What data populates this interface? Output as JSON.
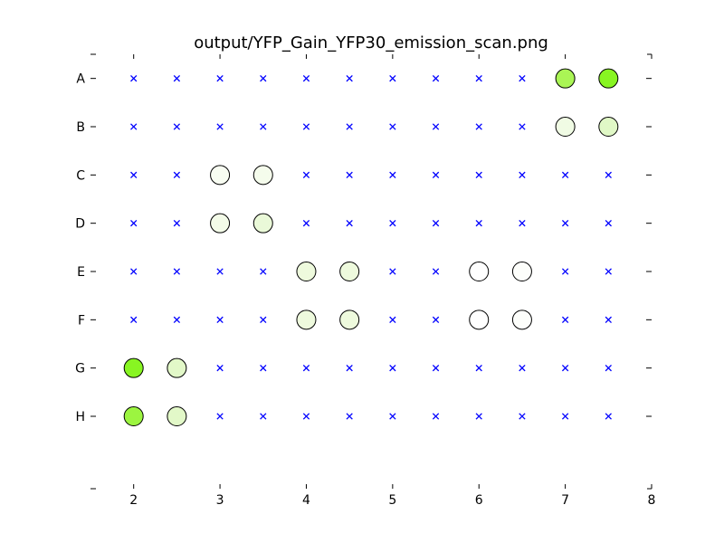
{
  "chart_data": {
    "type": "scatter",
    "title": "output/YFP_Gain_YFP30_emission_scan.png",
    "xlabel": "",
    "ylabel": "",
    "xlim": [
      1.5,
      8
    ],
    "ylim": [
      0.5,
      9.5
    ],
    "grid": false,
    "x_ticks": [
      "2",
      "3",
      "4",
      "5",
      "6",
      "7",
      "8"
    ],
    "x_tick_values": [
      2,
      3,
      4,
      5,
      6,
      7,
      8
    ],
    "rows": [
      "A",
      "B",
      "C",
      "D",
      "E",
      "F",
      "G",
      "H"
    ],
    "columns": [
      2,
      2.5,
      3,
      3.5,
      4,
      4.5,
      5,
      5.5,
      6,
      6.5,
      7,
      7.5
    ],
    "marker_color": "#0000ff",
    "circles": [
      {
        "row": "A",
        "x": 7.0,
        "color": "#aaf555"
      },
      {
        "row": "A",
        "x": 7.5,
        "color": "#88f522"
      },
      {
        "row": "B",
        "x": 7.0,
        "color": "#f0fbe4"
      },
      {
        "row": "B",
        "x": 7.5,
        "color": "#e0f8c6"
      },
      {
        "row": "C",
        "x": 3.0,
        "color": "#f8fdf2"
      },
      {
        "row": "C",
        "x": 3.5,
        "color": "#f5fcec"
      },
      {
        "row": "D",
        "x": 3.0,
        "color": "#f3fbe8"
      },
      {
        "row": "D",
        "x": 3.5,
        "color": "#eaf9d8"
      },
      {
        "row": "E",
        "x": 4.0,
        "color": "#eefadd"
      },
      {
        "row": "E",
        "x": 4.5,
        "color": "#eefadd"
      },
      {
        "row": "E",
        "x": 6.0,
        "color": "#ffffff"
      },
      {
        "row": "E",
        "x": 6.5,
        "color": "#fdfefb"
      },
      {
        "row": "F",
        "x": 4.0,
        "color": "#eefadd"
      },
      {
        "row": "F",
        "x": 4.5,
        "color": "#eefadd"
      },
      {
        "row": "F",
        "x": 6.0,
        "color": "#ffffff"
      },
      {
        "row": "F",
        "x": 6.5,
        "color": "#fdfefb"
      },
      {
        "row": "G",
        "x": 2.0,
        "color": "#88f522"
      },
      {
        "row": "G",
        "x": 2.5,
        "color": "#e2f8c8"
      },
      {
        "row": "H",
        "x": 2.0,
        "color": "#9cf540"
      },
      {
        "row": "H",
        "x": 2.5,
        "color": "#e2f8c8"
      }
    ]
  }
}
